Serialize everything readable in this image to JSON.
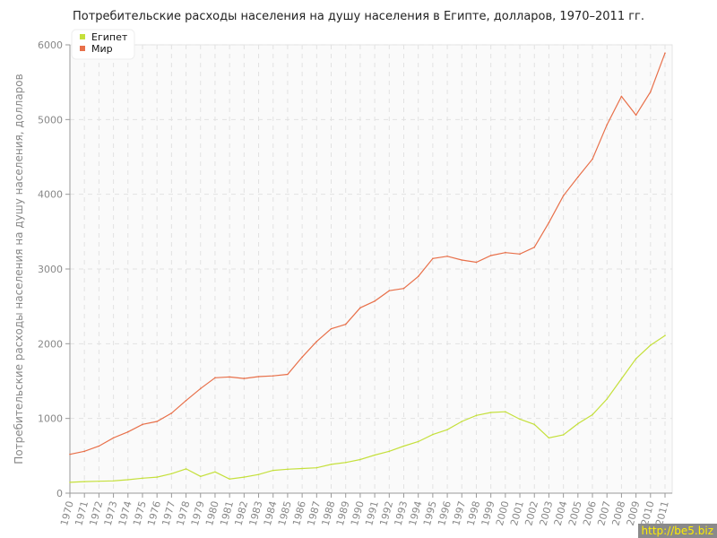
{
  "chart_data": {
    "type": "line",
    "title": "Потребительские расходы населения на душу населения в Египте, долларов, 1970–2011 гг.",
    "ylabel": "Потребительские расходы населения на душу населения, долларов",
    "xlabel": "",
    "ylim": [
      0,
      6000
    ],
    "yticks": [
      0,
      1000,
      2000,
      3000,
      4000,
      5000,
      6000
    ],
    "grid": true,
    "legend": "top-left",
    "x": [
      1970,
      1971,
      1972,
      1973,
      1974,
      1975,
      1976,
      1977,
      1978,
      1979,
      1980,
      1981,
      1982,
      1983,
      1984,
      1985,
      1986,
      1987,
      1988,
      1989,
      1990,
      1991,
      1992,
      1993,
      1994,
      1995,
      1996,
      1997,
      1998,
      1999,
      2000,
      2001,
      2002,
      2003,
      2004,
      2005,
      2006,
      2007,
      2008,
      2009,
      2010,
      2011
    ],
    "series": [
      {
        "name": "Египет",
        "color": "#c5e03c",
        "values": [
          145,
          155,
          160,
          165,
          180,
          200,
          215,
          260,
          325,
          225,
          285,
          190,
          215,
          250,
          305,
          320,
          330,
          340,
          385,
          410,
          450,
          510,
          560,
          630,
          690,
          785,
          850,
          960,
          1040,
          1080,
          1090,
          990,
          920,
          740,
          780,
          930,
          1050,
          1260,
          1530,
          1800,
          1980,
          2110
        ]
      },
      {
        "name": "Мир",
        "color": "#e8704a",
        "values": [
          520,
          560,
          630,
          740,
          820,
          920,
          960,
          1070,
          1240,
          1400,
          1545,
          1555,
          1535,
          1560,
          1570,
          1590,
          1820,
          2030,
          2200,
          2260,
          2480,
          2570,
          2710,
          2740,
          2900,
          3140,
          3170,
          3120,
          3090,
          3180,
          3220,
          3200,
          3290,
          3620,
          3980,
          4230,
          4470,
          4930,
          5310,
          5060,
          5370,
          5890
        ]
      }
    ]
  },
  "watermark": "http://be5.biz"
}
